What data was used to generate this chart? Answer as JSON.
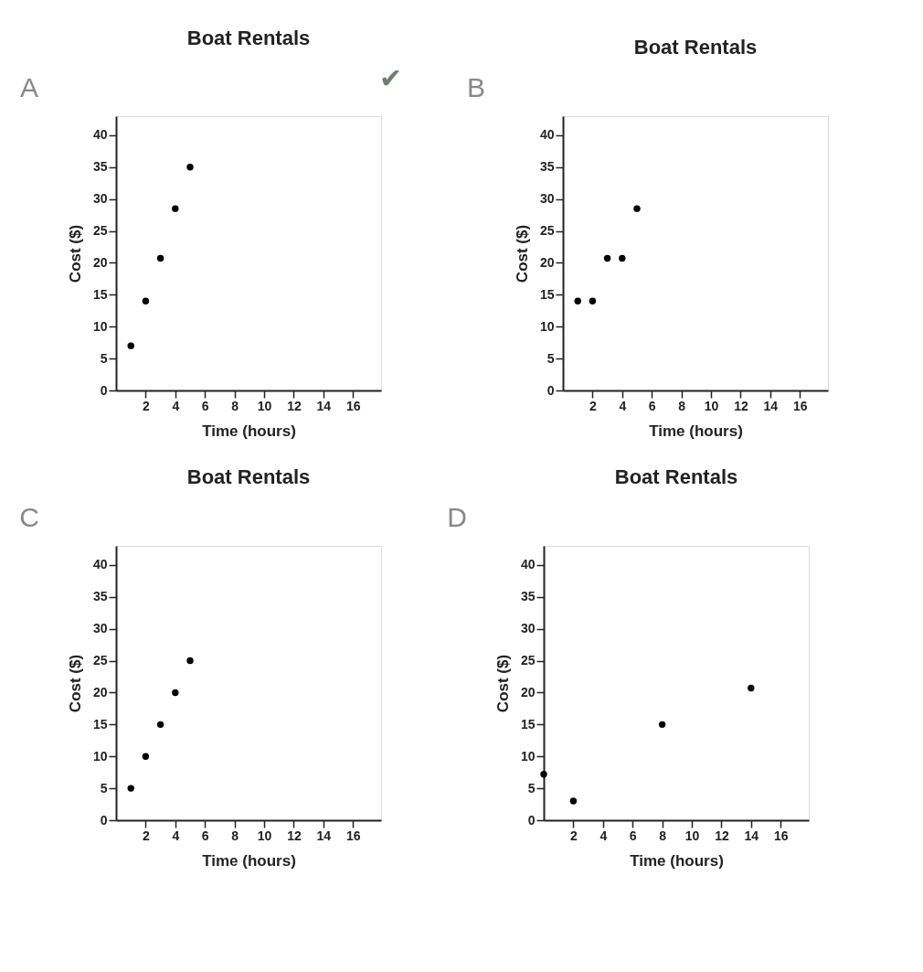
{
  "chart_data": [
    {
      "type": "scatter",
      "title": "Boat Rentals",
      "xlabel": "Time (hours)",
      "ylabel": "Cost ($)",
      "annotations": [
        "A",
        "✔"
      ],
      "x": [
        1,
        2,
        3,
        4,
        5
      ],
      "values": [
        7,
        14,
        20.7,
        28.5,
        35
      ],
      "color": "#000000",
      "marker": "circle",
      "grid": false,
      "xlim": [
        0,
        17.9
      ],
      "ylim": [
        0,
        43
      ],
      "xticks": [
        2,
        4,
        6,
        8,
        10,
        12,
        14,
        16
      ],
      "yticks": [
        0,
        5,
        10,
        15,
        20,
        25,
        30,
        35,
        40
      ]
    },
    {
      "type": "scatter",
      "title": "Boat Rentals",
      "xlabel": "Time (hours)",
      "ylabel": "Cost ($)",
      "annotations": [
        "B"
      ],
      "x": [
        1,
        2,
        3,
        4,
        5
      ],
      "values": [
        14,
        14,
        20.7,
        20.7,
        28.5
      ],
      "color": "#000000",
      "marker": "circle",
      "grid": false,
      "xlim": [
        0,
        17.9
      ],
      "ylim": [
        0,
        43
      ],
      "xticks": [
        2,
        4,
        6,
        8,
        10,
        12,
        14,
        16
      ],
      "yticks": [
        0,
        5,
        10,
        15,
        20,
        25,
        30,
        35,
        40
      ]
    },
    {
      "type": "scatter",
      "title": "Boat Rentals",
      "xlabel": "Time (hours)",
      "ylabel": "Cost ($)",
      "annotations": [
        "C"
      ],
      "x": [
        1,
        2,
        3,
        4,
        5
      ],
      "values": [
        5,
        10,
        15,
        20,
        25
      ],
      "color": "#000000",
      "marker": "circle",
      "grid": false,
      "xlim": [
        0,
        17.9
      ],
      "ylim": [
        0,
        43
      ],
      "xticks": [
        2,
        4,
        6,
        8,
        10,
        12,
        14,
        16
      ],
      "yticks": [
        0,
        5,
        10,
        15,
        20,
        25,
        30,
        35,
        40
      ]
    },
    {
      "type": "scatter",
      "title": "Boat Rentals",
      "xlabel": "Time (hours)",
      "ylabel": "Cost ($)",
      "annotations": [
        "D"
      ],
      "x": [
        0,
        2,
        8,
        14
      ],
      "values": [
        7.2,
        3,
        15,
        20.7
      ],
      "color": "#000000",
      "marker": "circle",
      "grid": false,
      "xlim": [
        0,
        17.9
      ],
      "ylim": [
        0,
        43
      ],
      "xticks": [
        2,
        4,
        6,
        8,
        10,
        12,
        14,
        16
      ],
      "yticks": [
        0,
        5,
        10,
        15,
        20,
        25,
        30,
        35,
        40
      ]
    }
  ]
}
